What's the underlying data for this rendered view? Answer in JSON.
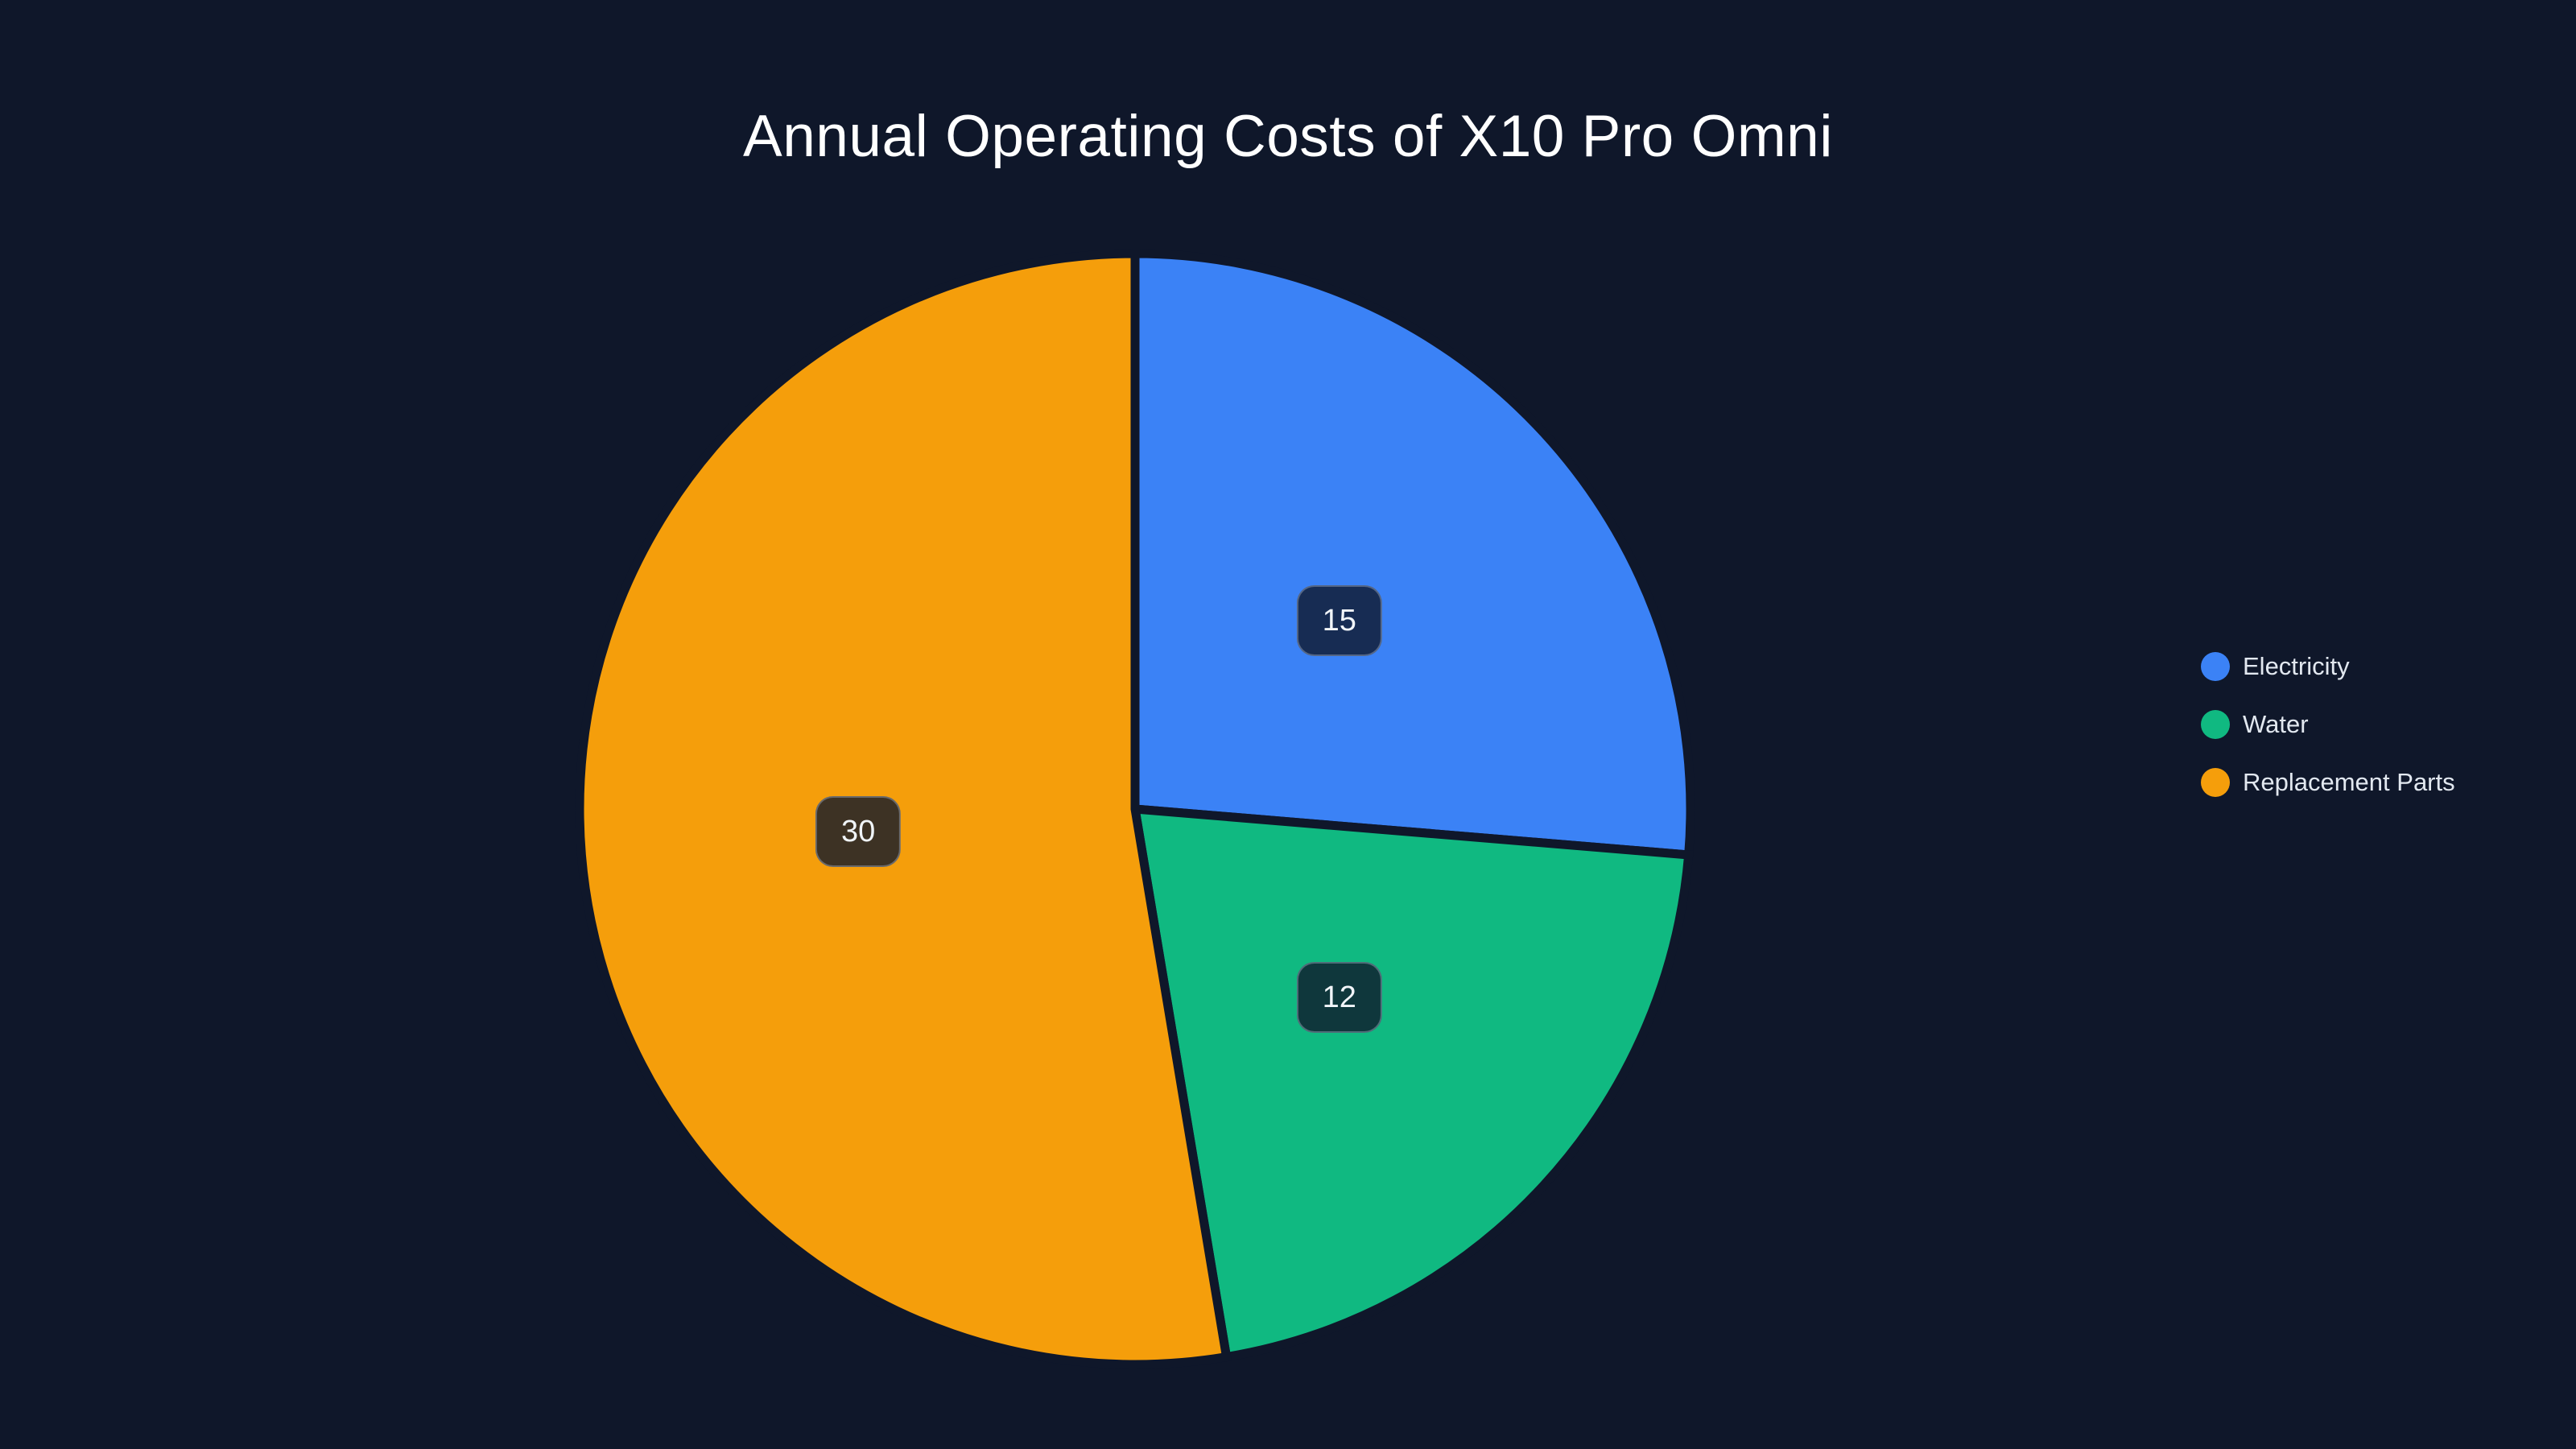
{
  "page": {
    "background_color": "#0f172a"
  },
  "chart_data": {
    "type": "pie",
    "title": "Annual Operating Costs of X10 Pro Omni",
    "series": [
      {
        "name": "Electricity",
        "value": 15,
        "color": "#3b82f6"
      },
      {
        "name": "Water",
        "value": 12,
        "color": "#10b981"
      },
      {
        "name": "Replacement Parts",
        "value": 30,
        "color": "#f59e0b"
      }
    ],
    "total": 57,
    "legend_position": "right",
    "legend_marker": "circle",
    "label_style": "value in dark rounded badge at mid-radius",
    "start_angle_deg": -90,
    "direction": "clockwise",
    "slice_border_color": "#0f172a",
    "label_badge_background": "rgba(15, 23, 42, 0.8)",
    "label_text_color": "#f1f5f9",
    "title_color": "#ffffff",
    "legend_text_color": "#e2e8f0",
    "geometry": {
      "center_x": 1410,
      "center_y": 1005,
      "radius": 690,
      "label_radius_ratio": 0.5,
      "slice_border_width": 11
    }
  }
}
